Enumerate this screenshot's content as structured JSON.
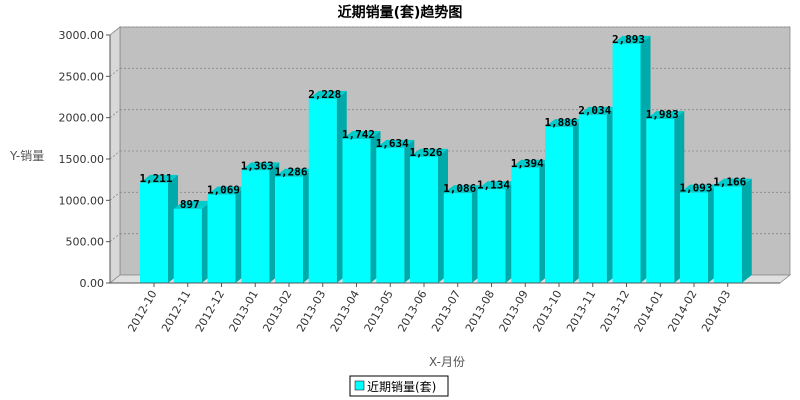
{
  "chart_data": {
    "type": "bar",
    "title": "近期销量(套)趋势图",
    "xlabel": "X-月份",
    "ylabel": "Y-销量",
    "ylim": [
      0,
      3000
    ],
    "yticks": [
      "0.00",
      "500.00",
      "1000.00",
      "1500.00",
      "2000.00",
      "2500.00",
      "3000.00"
    ],
    "grid": true,
    "legend_position": "bottom",
    "categories": [
      "2012-10",
      "2012-11",
      "2012-12",
      "2013-01",
      "2013-02",
      "2013-03",
      "2013-04",
      "2013-05",
      "2013-06",
      "2013-07",
      "2013-08",
      "2013-09",
      "2013-10",
      "2013-11",
      "2013-12",
      "2014-01",
      "2014-02",
      "2014-03"
    ],
    "series": [
      {
        "name": "近期销量(套)",
        "values": [
          1211,
          897,
          1069,
          1363,
          1286,
          2228,
          1742,
          1634,
          1526,
          1086,
          1134,
          1394,
          1886,
          2034,
          2893,
          1983,
          1093,
          1166
        ],
        "labels": [
          "1,211",
          "897",
          "1,069",
          "1,363",
          "1,286",
          "2,228",
          "1,742",
          "1,634",
          "1,526",
          "1,086",
          "1,134",
          "1,394",
          "1,886",
          "2,034",
          "2,893",
          "1,983",
          "1,093",
          "1,166"
        ]
      }
    ]
  },
  "colors": {
    "bar_front": "#00ffff",
    "bar_side": "#00aaaa",
    "bar_top": "#00cccc",
    "plot_back": "#c0c0c0",
    "plot_left_wall": "#d8d8d8",
    "plot_floor": "#e0e0e0"
  }
}
